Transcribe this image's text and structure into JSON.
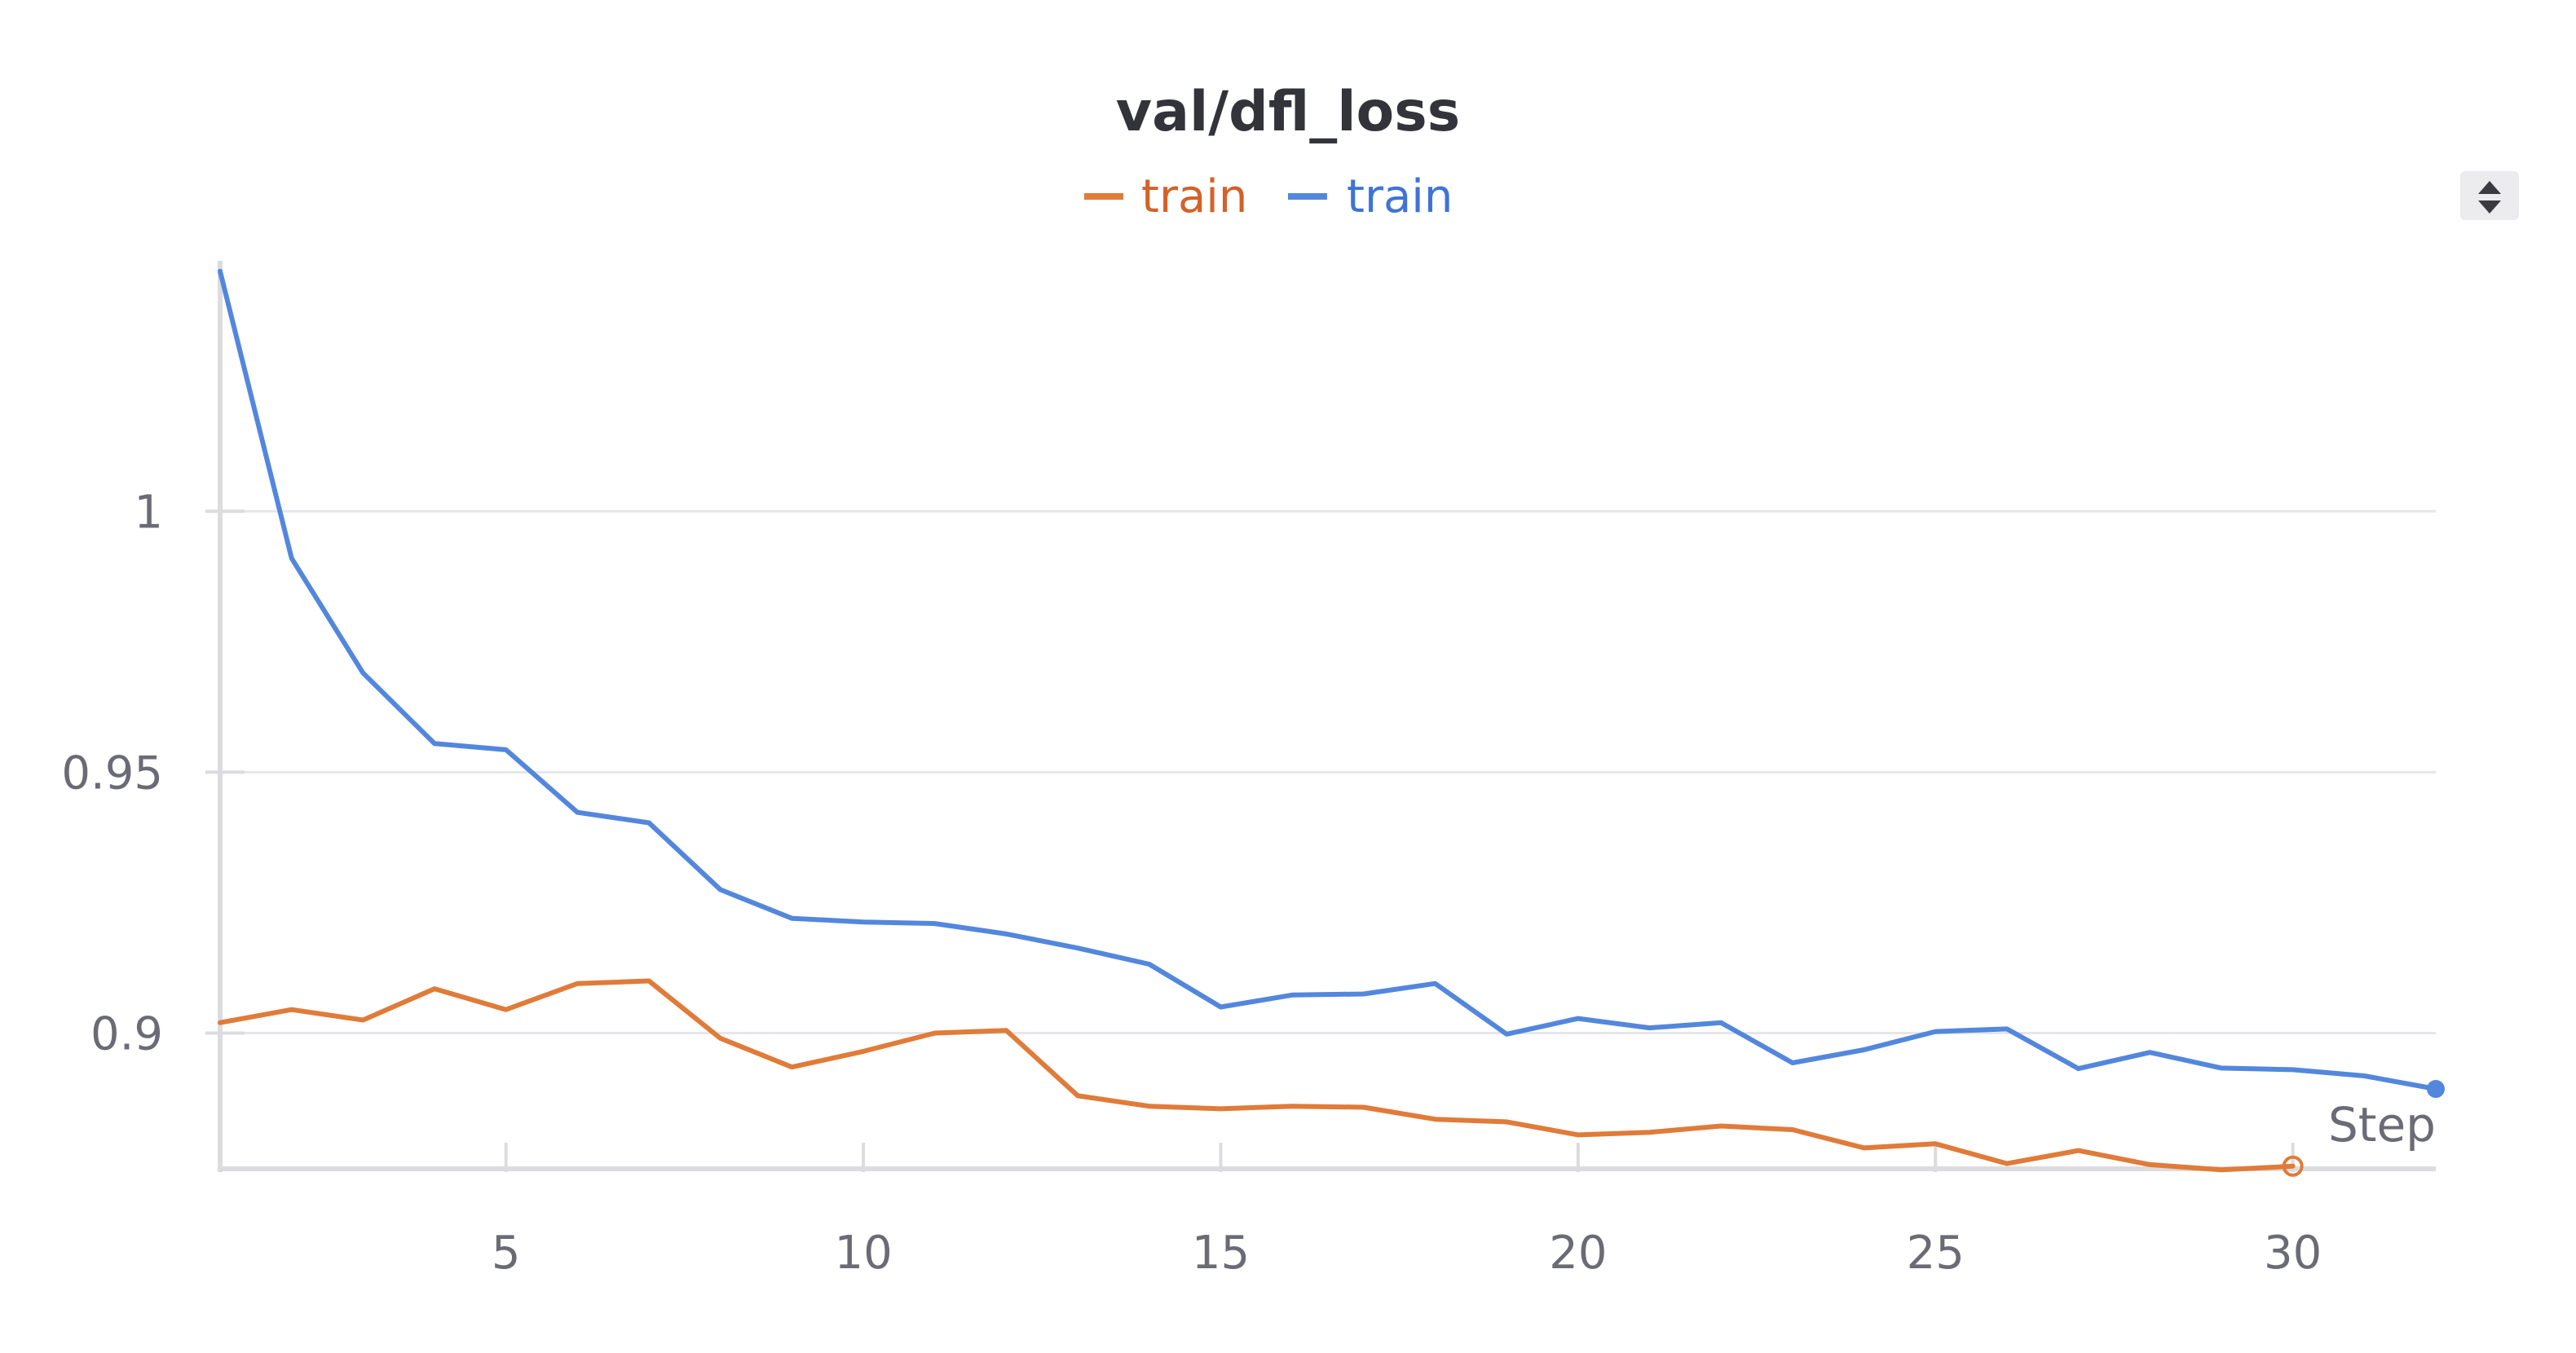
{
  "chart_data": {
    "type": "line",
    "title": "val/dfl_loss",
    "xlabel": "Step",
    "ylabel": "",
    "xlim": [
      1,
      32
    ],
    "ylim": [
      0.874,
      1.048
    ],
    "x_ticks": [
      5,
      10,
      15,
      20,
      25,
      30
    ],
    "x_tick_labels": [
      "5",
      "10",
      "15",
      "20",
      "25",
      "30"
    ],
    "y_ticks": [
      0.9,
      0.95,
      1.0
    ],
    "y_tick_labels": [
      "0.9",
      "0.95",
      "1"
    ],
    "grid": true,
    "legend_position": "top-center",
    "series": [
      {
        "name": "train",
        "color": "#e07b39",
        "x": [
          1,
          2,
          3,
          4,
          5,
          6,
          7,
          8,
          9,
          10,
          11,
          12,
          13,
          14,
          15,
          16,
          17,
          18,
          19,
          20,
          21,
          22,
          23,
          24,
          25,
          26,
          27,
          28,
          29,
          30
        ],
        "values": [
          0.902,
          0.9045,
          0.9025,
          0.9085,
          0.9045,
          0.9095,
          0.91,
          0.899,
          0.8935,
          0.8965,
          0.9,
          0.9005,
          0.888,
          0.886,
          0.8855,
          0.886,
          0.8858,
          0.8835,
          0.883,
          0.8805,
          0.881,
          0.8822,
          0.8815,
          0.878,
          0.8788,
          0.875,
          0.8775,
          0.8748,
          0.8738,
          0.8745
        ]
      },
      {
        "name": "train",
        "color": "#5387dd",
        "x": [
          1,
          2,
          3,
          4,
          5,
          6,
          7,
          8,
          9,
          10,
          11,
          12,
          13,
          14,
          15,
          16,
          17,
          18,
          19,
          20,
          21,
          22,
          23,
          24,
          25,
          26,
          27,
          28,
          29,
          30,
          31,
          32
        ],
        "values": [
          1.046,
          0.991,
          0.969,
          0.9555,
          0.9543,
          0.9423,
          0.9403,
          0.9275,
          0.922,
          0.9213,
          0.921,
          0.919,
          0.9163,
          0.9132,
          0.905,
          0.9073,
          0.9075,
          0.9095,
          0.8998,
          0.9028,
          0.901,
          0.902,
          0.8943,
          0.8968,
          0.9003,
          0.9008,
          0.8932,
          0.8963,
          0.8933,
          0.893,
          0.8918,
          0.8893
        ]
      }
    ]
  },
  "ui": {
    "sort_icon": "sort-arrows-icon"
  }
}
